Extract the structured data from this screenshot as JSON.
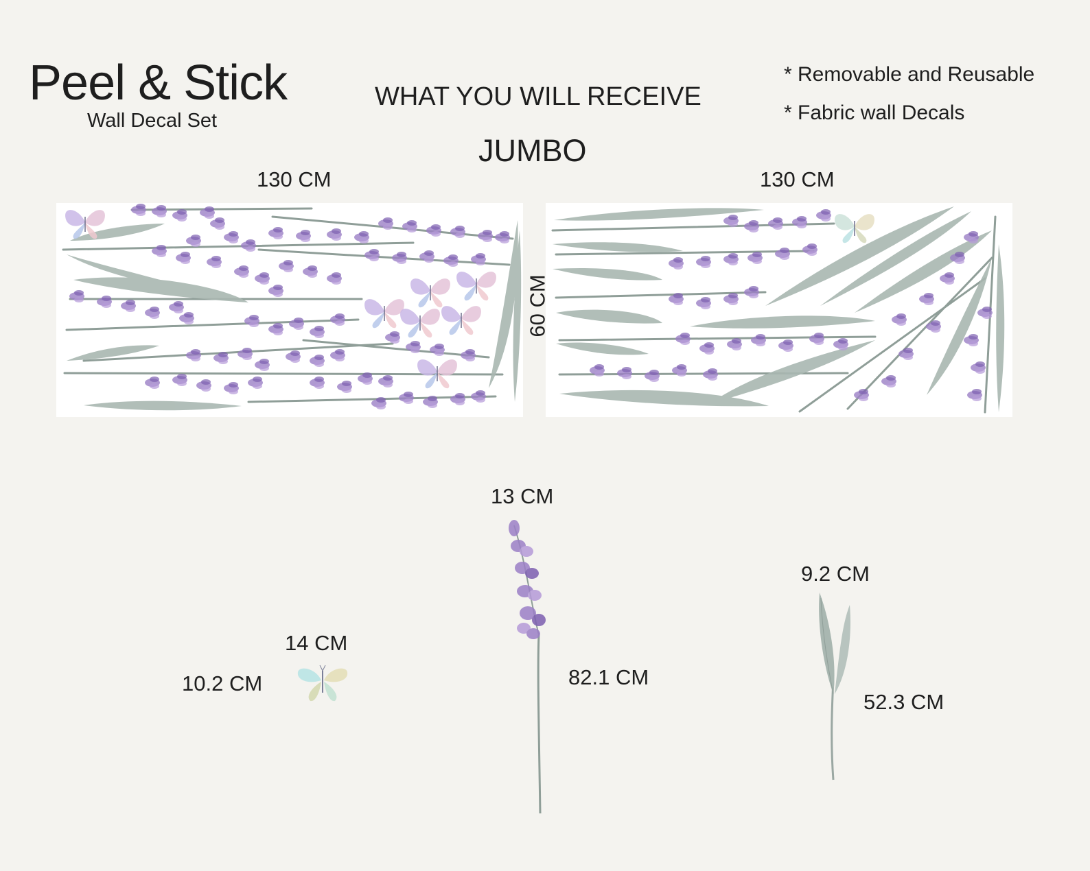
{
  "header": {
    "brand_title": "Peel & Stick",
    "brand_subtitle": "Wall Decal Set",
    "heading": "WHAT YOU WILL RECEIVE",
    "features": [
      "* Removable and Reusable",
      "* Fabric wall Decals"
    ],
    "size_label": "JUMBO"
  },
  "sheets": {
    "left_width": "130 CM",
    "right_width": "130 CM",
    "height": "60 CM"
  },
  "pieces": {
    "butterfly": {
      "width": "14 CM",
      "height": "10.2 CM"
    },
    "lavender_stem": {
      "width": "13 CM",
      "height": "82.1 CM"
    },
    "leaf_pair": {
      "width": "9.2 CM",
      "height": "52.3 CM"
    }
  },
  "colors": {
    "background": "#f4f3ef",
    "sheet": "#ffffff",
    "lavender": "#9b7fc6",
    "lavender_dark": "#7d5fb0",
    "leaf": "#a9b7b1",
    "stem": "#8f9e98"
  }
}
